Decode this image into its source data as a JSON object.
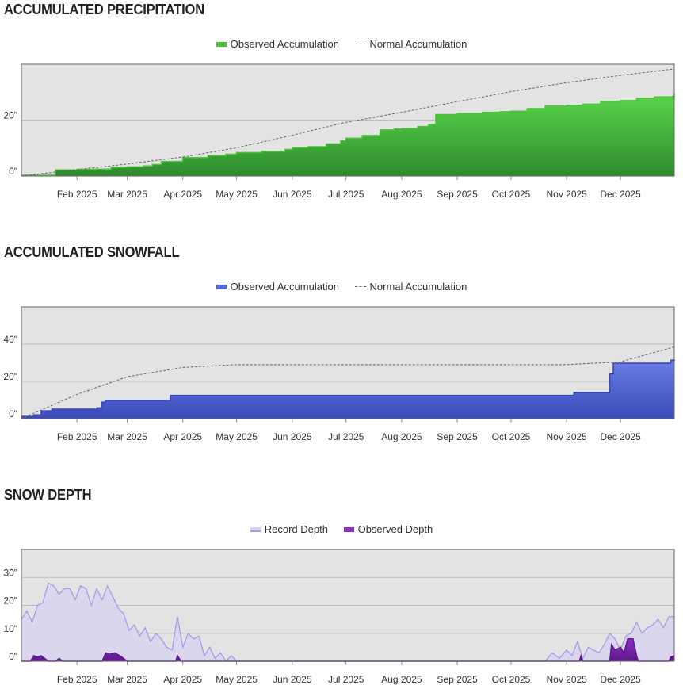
{
  "chart_data": [
    {
      "type": "area",
      "title": "ACCUMULATED PRECIPITATION",
      "y_ticks": [
        "0\"",
        "20\""
      ],
      "y_tick_values": [
        0,
        20
      ],
      "ylim": [
        0,
        40
      ],
      "x_ticks": [
        "Feb 2025",
        "Mar 2025",
        "Apr 2025",
        "May 2025",
        "Jun 2025",
        "Jul 2025",
        "Aug 2025",
        "Sep 2025",
        "Oct 2025",
        "Nov 2025",
        "Dec 2025"
      ],
      "grid": true,
      "legend_position": "top-center",
      "colors": {
        "observed_fill": "#5ad64a",
        "observed_fill_dark": "#2e8b2e",
        "observed_line": "#4cc23a",
        "normal_line": "#666666"
      },
      "series": [
        {
          "name": "Observed Accumulation",
          "style": "area-step",
          "x": [
            "2025-01-01",
            "2025-01-20",
            "2025-02-01",
            "2025-02-10",
            "2025-02-20",
            "2025-03-01",
            "2025-03-10",
            "2025-03-15",
            "2025-03-20",
            "2025-04-01",
            "2025-04-15",
            "2025-04-25",
            "2025-05-01",
            "2025-05-15",
            "2025-05-28",
            "2025-06-01",
            "2025-06-10",
            "2025-06-20",
            "2025-06-28",
            "2025-07-01",
            "2025-07-10",
            "2025-07-20",
            "2025-07-28",
            "2025-08-01",
            "2025-08-10",
            "2025-08-16",
            "2025-08-20",
            "2025-09-01",
            "2025-09-15",
            "2025-09-25",
            "2025-10-01",
            "2025-10-10",
            "2025-10-20",
            "2025-11-01",
            "2025-11-10",
            "2025-11-20",
            "2025-12-01",
            "2025-12-10",
            "2025-12-20",
            "2025-12-30",
            "2025-12-31"
          ],
          "y": [
            0.3,
            2.2,
            2.4,
            2.5,
            3.1,
            3.3,
            3.6,
            4.1,
            5.2,
            6.6,
            7.3,
            7.8,
            8.4,
            8.8,
            9.5,
            10.1,
            10.5,
            11.5,
            12.6,
            13.5,
            14.5,
            16.5,
            16.8,
            17.0,
            17.7,
            18.4,
            22.0,
            22.4,
            22.8,
            23.0,
            23.2,
            24.1,
            25.0,
            25.3,
            25.7,
            26.7,
            27.0,
            27.8,
            28.3,
            28.5,
            29.5
          ]
        },
        {
          "name": "Normal Accumulation",
          "style": "dashed-line",
          "x": [
            "2025-01-01",
            "2025-02-01",
            "2025-03-01",
            "2025-04-01",
            "2025-05-01",
            "2025-06-01",
            "2025-07-01",
            "2025-08-01",
            "2025-09-01",
            "2025-10-01",
            "2025-11-01",
            "2025-12-01",
            "2025-12-31"
          ],
          "y": [
            0,
            2.3,
            4.3,
            6.8,
            10.1,
            14.6,
            19.2,
            22.8,
            26.6,
            30.2,
            33.4,
            36.0,
            38.3
          ]
        }
      ]
    },
    {
      "type": "area",
      "title": "ACCUMULATED SNOWFALL",
      "y_ticks": [
        "0\"",
        "20\"",
        "40\""
      ],
      "y_tick_values": [
        0,
        20,
        40
      ],
      "ylim": [
        0,
        60
      ],
      "x_ticks": [
        "Feb 2025",
        "Mar 2025",
        "Apr 2025",
        "May 2025",
        "Jun 2025",
        "Jul 2025",
        "Aug 2025",
        "Sep 2025",
        "Oct 2025",
        "Nov 2025",
        "Dec 2025"
      ],
      "grid": true,
      "legend_position": "top-center",
      "colors": {
        "observed_fill": "#6a7fe6",
        "observed_fill_dark": "#3a4bb8",
        "observed_line": "#3344bb",
        "normal_line": "#666666"
      },
      "series": [
        {
          "name": "Observed Accumulation",
          "style": "area-step",
          "x": [
            "2025-01-01",
            "2025-01-08",
            "2025-01-12",
            "2025-01-18",
            "2025-02-12",
            "2025-02-15",
            "2025-02-17",
            "2025-03-20",
            "2025-03-25",
            "2025-11-05",
            "2025-11-25",
            "2025-11-27",
            "2025-12-29",
            "2025-12-31"
          ],
          "y": [
            1.2,
            2.0,
            4.2,
            5.1,
            5.8,
            8.9,
            9.8,
            9.8,
            12.5,
            14.0,
            24.0,
            29.8,
            31.4,
            31.9
          ]
        },
        {
          "name": "Normal Accumulation",
          "style": "dashed-line",
          "x": [
            "2025-01-01",
            "2025-02-01",
            "2025-03-01",
            "2025-04-01",
            "2025-05-01",
            "2025-06-01",
            "2025-07-01",
            "2025-08-01",
            "2025-09-01",
            "2025-10-01",
            "2025-11-01",
            "2025-12-01",
            "2025-12-31"
          ],
          "y": [
            0,
            13.0,
            22.5,
            27.5,
            29.0,
            29.0,
            29.0,
            29.0,
            29.0,
            29.0,
            29.0,
            30.5,
            38.5
          ]
        }
      ]
    },
    {
      "type": "area",
      "title": "SNOW DEPTH",
      "y_ticks": [
        "0\"",
        "10\"",
        "20\"",
        "30\""
      ],
      "y_tick_values": [
        0,
        10,
        20,
        30
      ],
      "ylim": [
        0,
        40
      ],
      "x_ticks": [
        "Feb 2025",
        "Mar 2025",
        "Apr 2025",
        "May 2025",
        "Jun 2025",
        "Jul 2025",
        "Aug 2025",
        "Sep 2025",
        "Oct 2025",
        "Nov 2025",
        "Dec 2025"
      ],
      "grid": true,
      "legend_position": "top-center",
      "colors": {
        "record_fill": "#d8d4ee",
        "record_line": "#a99ae6",
        "observed_fill": "#8e2cc8",
        "observed_fill_dark": "#5e1a8a"
      },
      "series": [
        {
          "name": "Record Depth",
          "style": "area-line",
          "x": [
            "2025-01-01",
            "2025-01-04",
            "2025-01-07",
            "2025-01-10",
            "2025-01-13",
            "2025-01-16",
            "2025-01-19",
            "2025-01-22",
            "2025-01-25",
            "2025-01-28",
            "2025-01-31",
            "2025-02-03",
            "2025-02-06",
            "2025-02-09",
            "2025-02-12",
            "2025-02-15",
            "2025-02-18",
            "2025-02-21",
            "2025-02-24",
            "2025-02-27",
            "2025-03-02",
            "2025-03-05",
            "2025-03-08",
            "2025-03-11",
            "2025-03-14",
            "2025-03-17",
            "2025-03-20",
            "2025-03-23",
            "2025-03-26",
            "2025-03-29",
            "2025-04-01",
            "2025-04-04",
            "2025-04-07",
            "2025-04-10",
            "2025-04-13",
            "2025-04-16",
            "2025-04-19",
            "2025-04-22",
            "2025-04-25",
            "2025-04-28",
            "2025-05-01",
            "2025-10-20",
            "2025-10-24",
            "2025-10-28",
            "2025-11-01",
            "2025-11-04",
            "2025-11-07",
            "2025-11-10",
            "2025-11-13",
            "2025-11-16",
            "2025-11-19",
            "2025-11-22",
            "2025-11-25",
            "2025-11-28",
            "2025-12-01",
            "2025-12-04",
            "2025-12-07",
            "2025-12-10",
            "2025-12-13",
            "2025-12-16",
            "2025-12-19",
            "2025-12-22",
            "2025-12-25",
            "2025-12-28",
            "2025-12-31"
          ],
          "y": [
            15,
            18,
            14,
            20,
            21,
            28,
            27,
            24,
            26,
            26,
            22,
            27,
            26,
            20,
            26,
            22,
            27,
            23,
            19,
            17,
            11,
            13,
            9,
            12,
            7,
            10,
            8,
            5,
            4,
            16,
            5,
            10,
            8,
            9,
            2,
            5,
            1,
            3,
            0,
            2,
            0,
            0,
            3,
            1,
            4,
            2,
            7,
            1,
            5,
            4,
            3,
            6,
            10,
            8,
            4,
            9,
            10,
            14,
            10,
            12,
            13,
            15,
            12,
            16,
            16
          ]
        },
        {
          "name": "Observed Depth",
          "style": "area-line",
          "x": [
            "2025-01-01",
            "2025-01-06",
            "2025-01-08",
            "2025-01-10",
            "2025-01-12",
            "2025-01-14",
            "2025-01-16",
            "2025-01-20",
            "2025-01-22",
            "2025-01-24",
            "2025-02-15",
            "2025-02-17",
            "2025-02-19",
            "2025-02-22",
            "2025-02-25",
            "2025-02-27",
            "2025-03-01",
            "2025-03-28",
            "2025-03-29",
            "2025-03-31",
            "2025-11-08",
            "2025-11-09",
            "2025-11-10",
            "2025-11-25",
            "2025-11-26",
            "2025-11-28",
            "2025-12-01",
            "2025-12-03",
            "2025-12-05",
            "2025-12-08",
            "2025-12-10",
            "2025-12-11",
            "2025-12-28",
            "2025-12-29",
            "2025-12-31"
          ],
          "y": [
            0,
            0,
            2,
            1.5,
            2,
            1,
            0,
            0,
            1,
            0,
            0,
            3,
            2.5,
            3,
            2,
            1,
            0,
            0,
            2,
            0,
            0,
            2,
            0,
            0,
            6,
            4,
            5,
            3,
            8,
            8,
            2,
            0,
            0,
            1.5,
            2
          ]
        }
      ]
    }
  ],
  "legend": {
    "precip": [
      "Observed Accumulation",
      "Normal Accumulation"
    ],
    "snowfall": [
      "Observed Accumulation",
      "Normal Accumulation"
    ],
    "depth": [
      "Record Depth",
      "Observed Depth"
    ]
  }
}
